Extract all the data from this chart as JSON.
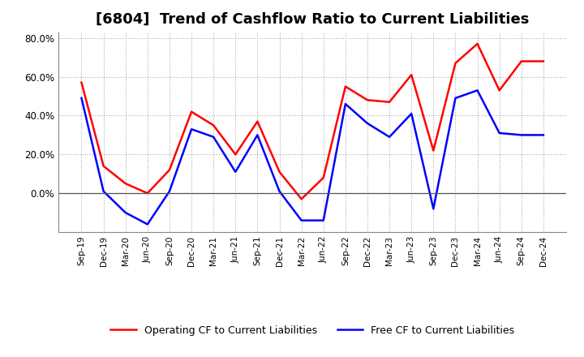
{
  "title": "[6804]  Trend of Cashflow Ratio to Current Liabilities",
  "x_labels": [
    "Sep-19",
    "Dec-19",
    "Mar-20",
    "Jun-20",
    "Sep-20",
    "Dec-20",
    "Mar-21",
    "Jun-21",
    "Sep-21",
    "Dec-21",
    "Mar-22",
    "Jun-22",
    "Sep-22",
    "Dec-22",
    "Mar-23",
    "Jun-23",
    "Sep-23",
    "Dec-23",
    "Mar-24",
    "Jun-24",
    "Sep-24",
    "Dec-24"
  ],
  "operating_cf": [
    57,
    14,
    5,
    0,
    12,
    42,
    35,
    20,
    37,
    11,
    -3,
    8,
    55,
    48,
    47,
    61,
    22,
    67,
    77,
    53,
    68,
    68
  ],
  "free_cf": [
    49,
    1,
    -10,
    -16,
    1,
    33,
    29,
    11,
    30,
    1,
    -14,
    -14,
    46,
    36,
    29,
    41,
    -8,
    49,
    53,
    31,
    30,
    30
  ],
  "operating_color": "#ff0000",
  "free_color": "#0000ff",
  "ylim_min": -20,
  "ylim_max": 83,
  "yticks": [
    0,
    20,
    40,
    60,
    80
  ],
  "ytick_labels": [
    "0.0%",
    "20.0%",
    "40.0%",
    "60.0%",
    "80.0%"
  ],
  "background_color": "#ffffff",
  "grid_color": "#aaaaaa",
  "title_fontsize": 13,
  "legend_labels": [
    "Operating CF to Current Liabilities",
    "Free CF to Current Liabilities"
  ]
}
